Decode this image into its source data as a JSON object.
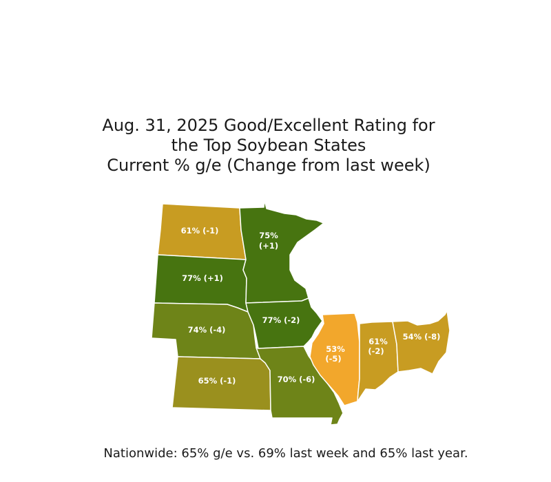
{
  "title": {
    "line1": "Aug. 31, 2025 Good/Excellent Rating for",
    "line2": "the Top Soybean States",
    "line3": "Current % g/e (Change from last week)"
  },
  "colors": {
    "dark_green": "#477410",
    "olive_green": "#6E8418",
    "olive": "#9A901E",
    "gold": "#C89C22",
    "orange": "#F2A72C",
    "border": "#ffffff"
  },
  "states": {
    "north_dakota": {
      "line1": "61% (-1)",
      "line2": "",
      "color": "#C89C22"
    },
    "south_dakota": {
      "line1": "77% (+1)",
      "line2": "",
      "color": "#477410"
    },
    "minnesota": {
      "line1": "75%",
      "line2": "(+1)",
      "color": "#477410"
    },
    "nebraska": {
      "line1": "74% (-4)",
      "line2": "",
      "color": "#6E8418"
    },
    "kansas": {
      "line1": "65% (-1)",
      "line2": "",
      "color": "#9A901E"
    },
    "iowa": {
      "line1": "77% (-2)",
      "line2": "",
      "color": "#477410"
    },
    "missouri": {
      "line1": "70% (-6)",
      "line2": "",
      "color": "#6E8418"
    },
    "illinois": {
      "line1": "53%",
      "line2": "(-5)",
      "color": "#F2A72C"
    },
    "indiana": {
      "line1": "61%",
      "line2": "(-2)",
      "color": "#C89C22"
    },
    "ohio": {
      "line1": "54% (-8)",
      "line2": "",
      "color": "#C89C22"
    }
  },
  "footnote": "Nationwide: 65% g/e vs. 69% last week and 65% last year."
}
